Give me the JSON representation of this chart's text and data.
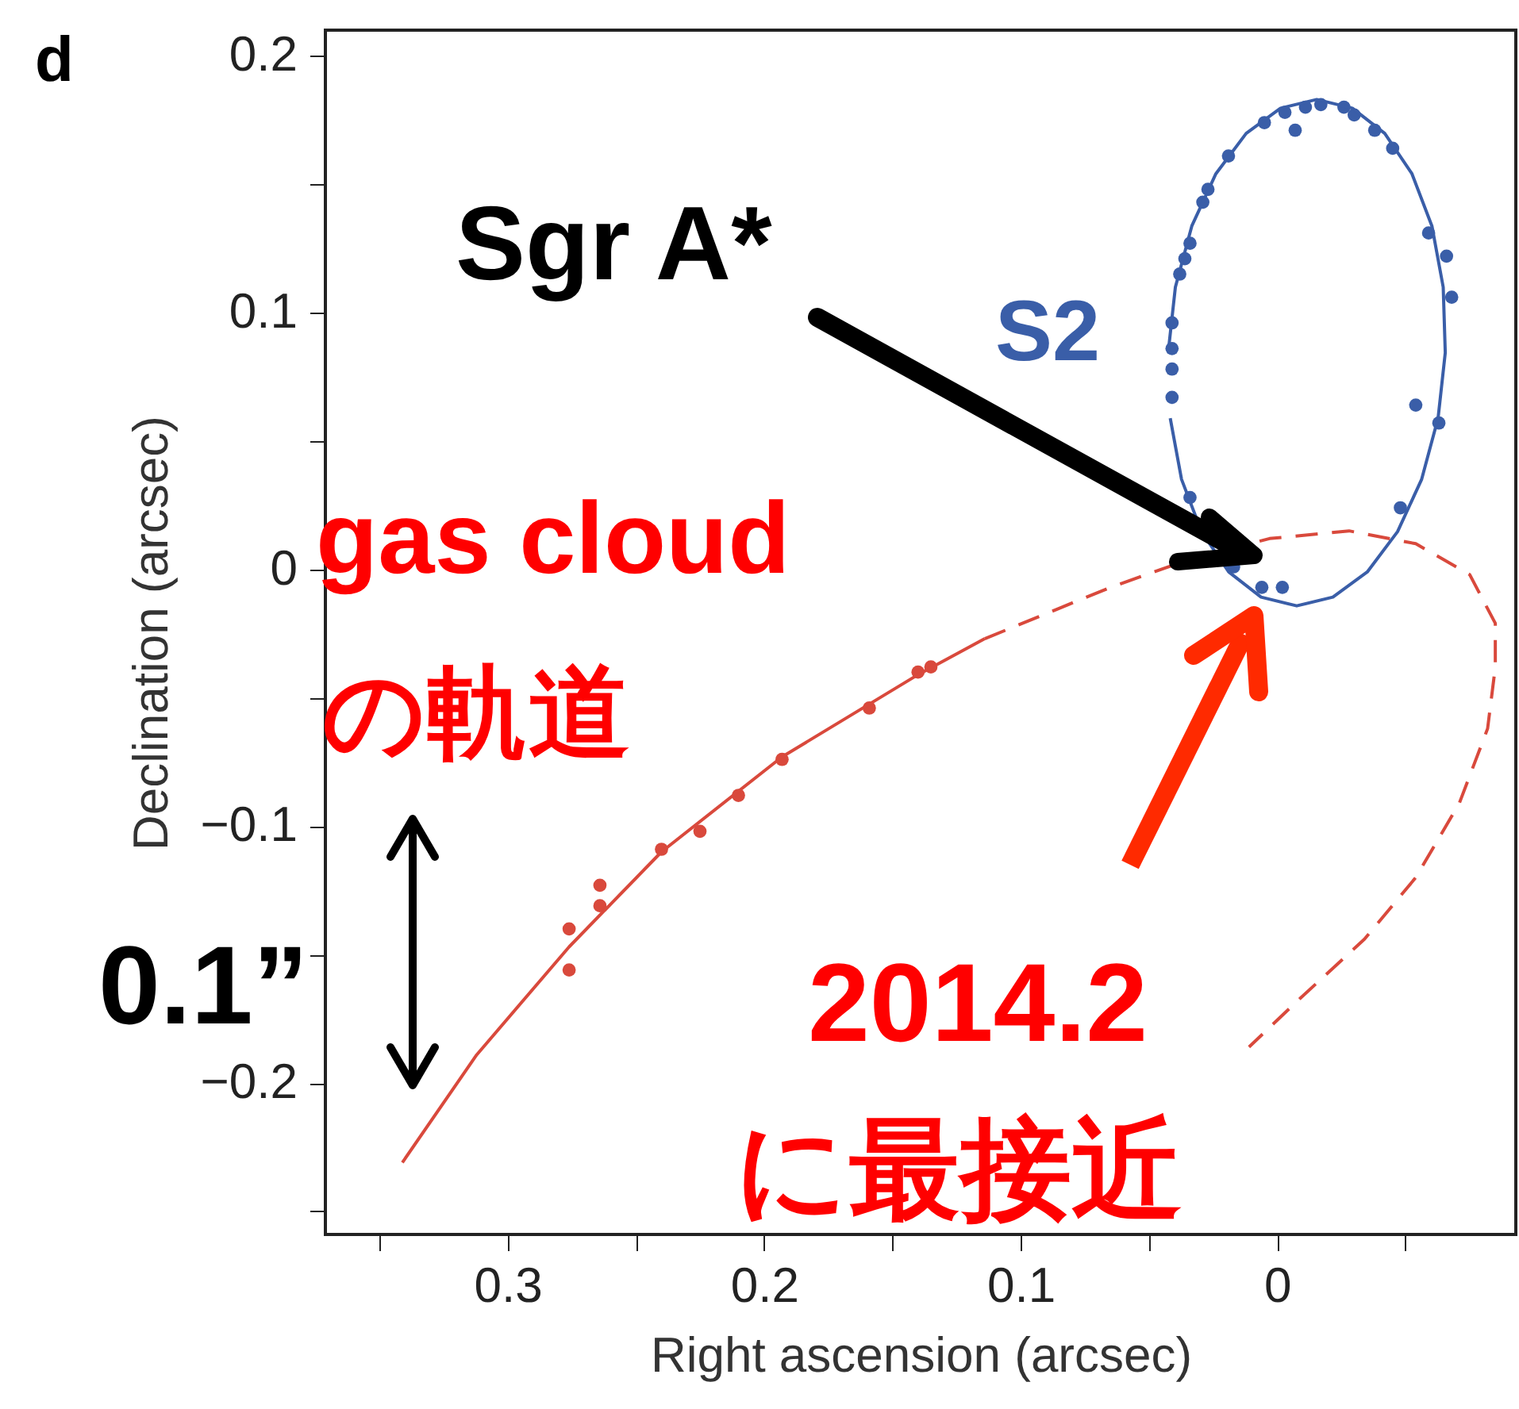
{
  "chart_data": {
    "type": "scatter",
    "xlabel": "Right ascension (arcsec)",
    "ylabel": "Declination (arcsec)",
    "xlim": [
      0.371,
      -0.093
    ],
    "ylim": [
      -0.259,
      0.21
    ],
    "xticks": [
      {
        "value": 0.35,
        "label": null
      },
      0.3,
      {
        "value": 0.25,
        "label": null
      },
      0.2,
      {
        "value": 0.15,
        "label": null
      },
      0.1,
      {
        "value": 0.05,
        "label": null
      },
      0,
      {
        "value": -0.05,
        "label": null
      }
    ],
    "yticks": [
      {
        "value": -0.25,
        "label": null
      },
      {
        "value": -0.2,
        "label": "−0.2"
      },
      {
        "value": -0.15,
        "label": null
      },
      {
        "value": -0.1,
        "label": "−0.1"
      },
      {
        "value": -0.05,
        "label": null
      },
      0,
      {
        "value": 0.05,
        "label": null
      },
      0.1,
      {
        "value": 0.15,
        "label": null
      },
      0.2
    ],
    "grid": false,
    "annotations": [
      "d",
      "Sgr A*",
      "gas cloud",
      "の軌道",
      "0.1”",
      "2014.2",
      "に最接近"
    ],
    "series": [
      {
        "name": "S2",
        "marker": "circle",
        "color": "#3a5ea8",
        "x": [
          0.005,
          -0.007,
          -0.003,
          -0.011,
          -0.017,
          -0.026,
          -0.03,
          -0.038,
          -0.045,
          0.019,
          0.027,
          0.029,
          0.034,
          0.036,
          0.038,
          0.041,
          0.041,
          0.041,
          0.041,
          -0.059,
          -0.066,
          -0.068,
          -0.054,
          -0.063,
          -0.048,
          0.034,
          0.017,
          0.006,
          -0.002
        ],
        "values": [
          0.174,
          0.171,
          0.178,
          0.18,
          0.181,
          0.18,
          0.177,
          0.171,
          0.164,
          0.161,
          0.148,
          0.143,
          0.127,
          0.121,
          0.115,
          0.096,
          0.086,
          0.078,
          0.067,
          0.131,
          0.122,
          0.106,
          0.064,
          0.057,
          0.024,
          0.028,
          0.001,
          -0.007,
          -0.007
        ]
      },
      {
        "type": "line",
        "marker": "none",
        "color": "#3a5ea8",
        "x": [
          0.0425,
          0.0397,
          0.0333,
          0.0239,
          0.0121,
          -0.0013,
          -0.0154,
          -0.0293,
          -0.0419,
          -0.0525,
          -0.0603,
          -0.0647,
          -0.0655,
          -0.0627,
          -0.0563,
          -0.0469,
          -0.0351,
          -0.0217,
          -0.0076,
          0.0063,
          0.0189,
          0.0295,
          0.0373,
          0.0417
        ],
        "values": [
          0.0844,
          0.1099,
          0.1337,
          0.1541,
          0.1698,
          0.1796,
          0.183,
          0.1796,
          0.1698,
          0.1541,
          0.1337,
          0.1099,
          0.0844,
          0.0589,
          0.0351,
          0.0147,
          -0.001,
          -0.0108,
          -0.0142,
          -0.0108,
          -0.001,
          0.0147,
          0.0351,
          0.0589
        ]
      },
      {
        "marker": "circle",
        "color": "#d9493c",
        "x": [
          0.276,
          0.276,
          0.264,
          0.264,
          0.24,
          0.225,
          0.21,
          0.193,
          0.159,
          0.14,
          0.135
        ],
        "values": [
          -0.156,
          -0.14,
          -0.123,
          -0.131,
          -0.109,
          -0.102,
          -0.088,
          -0.074,
          -0.054,
          -0.04,
          -0.038
        ]
      },
      {
        "type": "line",
        "marker": "none",
        "color": "#d9493c",
        "x": [
          0.341,
          0.312,
          0.276,
          0.24,
          0.193,
          0.14,
          0.114
        ],
        "values": [
          -0.231,
          -0.189,
          -0.147,
          -0.11,
          -0.073,
          -0.041,
          -0.027
        ]
      },
      {
        "type": "line",
        "marker": "none",
        "color": "#d9493c",
        "line_style": "dashed",
        "x": [
          0.114,
          0.065,
          0.034,
          0.003,
          -0.028,
          -0.054,
          -0.075,
          -0.085,
          -0.085,
          -0.082,
          -0.071,
          -0.054,
          -0.034,
          -0.009,
          0.011
        ],
        "values": [
          -0.027,
          -0.007,
          0.004,
          0.012,
          0.015,
          0.01,
          -0.002,
          -0.021,
          -0.038,
          -0.062,
          -0.091,
          -0.12,
          -0.144,
          -0.167,
          -0.186
        ]
      }
    ]
  }
}
